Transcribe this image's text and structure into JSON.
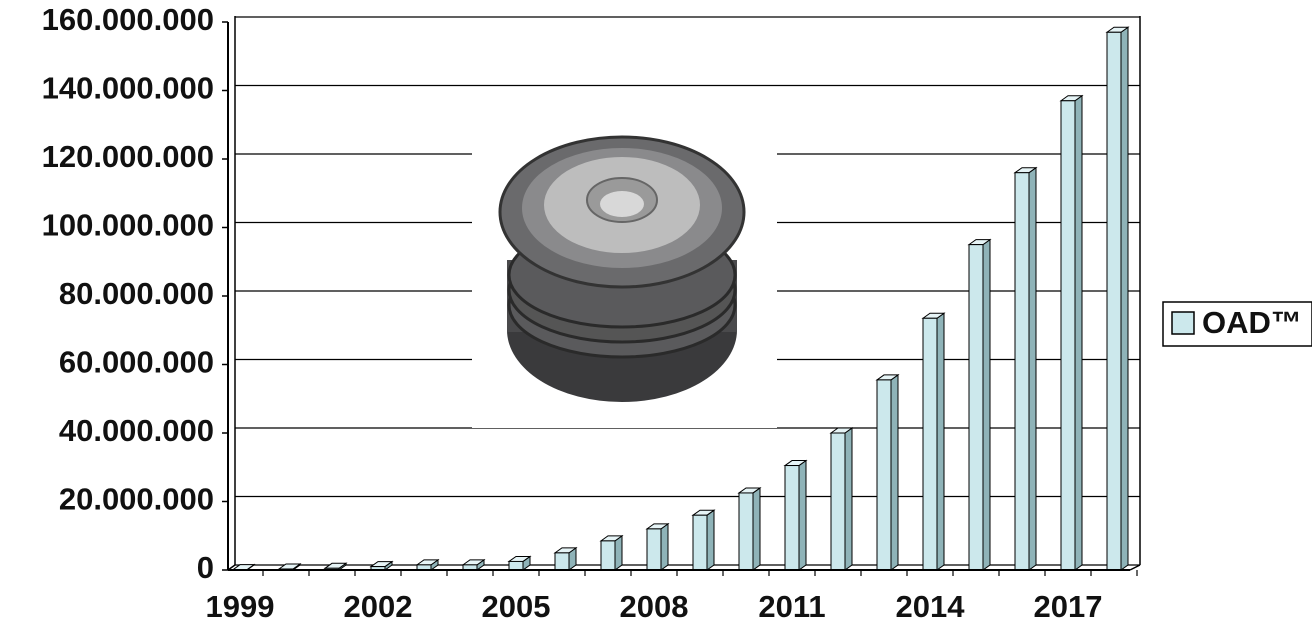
{
  "chart_data": {
    "type": "bar",
    "categories": [
      "1999",
      null,
      null,
      "2002",
      null,
      null,
      "2005",
      null,
      null,
      "2008",
      null,
      null,
      "2011",
      null,
      null,
      "2014",
      null,
      null,
      "2017",
      null
    ],
    "series": [
      {
        "name": "OAD™",
        "color": "#cce8ec",
        "values": [
          100000,
          300000,
          500000,
          1000000,
          1500000,
          1500000,
          2500000,
          5000000,
          8500000,
          12000000,
          16000000,
          22500000,
          30500000,
          40000000,
          55500000,
          73500000,
          95000000,
          116000000,
          137000000,
          157000000
        ]
      }
    ],
    "ylim": [
      0,
      160000000
    ],
    "yticks": [
      0,
      {
        "value": 20000000,
        "label": "20.000.000"
      },
      {
        "value": 40000000,
        "label": "40.000.000"
      },
      {
        "value": 60000000,
        "label": "60.000.000"
      },
      {
        "value": 80000000,
        "label": "80.000.000"
      },
      {
        "value": 100000000,
        "label": "100.000.000"
      },
      {
        "value": 120000000,
        "label": "120.000.000"
      },
      {
        "value": 140000000,
        "label": "140.000.000"
      },
      {
        "value": 160000000,
        "label": "160.000.000"
      }
    ],
    "grid": true
  }
}
